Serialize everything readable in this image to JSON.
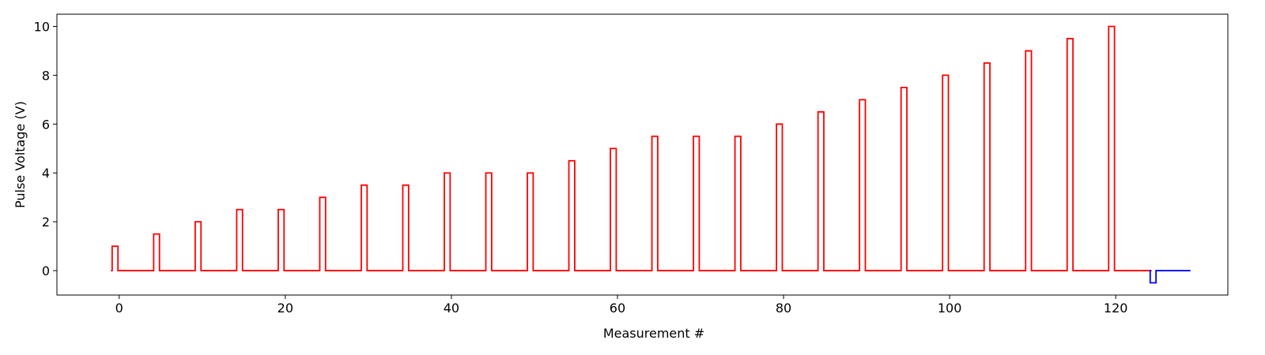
{
  "chart_data": {
    "type": "line",
    "xlabel": "Measurement #",
    "ylabel": "Pulse Voltage (V)",
    "xlim": [
      -7.5,
      133.5
    ],
    "ylim": [
      -1.0,
      10.5
    ],
    "xticks": [
      0,
      20,
      40,
      60,
      80,
      100,
      120
    ],
    "yticks": [
      0,
      2,
      4,
      6,
      8,
      10
    ],
    "grid": false,
    "legend": "none",
    "pulse_width": 0.7,
    "series": [
      {
        "color": "#ff0000",
        "step_plot": true,
        "baseline": 0,
        "x_start": -1,
        "x_end": 124.3,
        "pulses": [
          {
            "x": -0.5,
            "v": 1.0
          },
          {
            "x": 4.5,
            "v": 1.5
          },
          {
            "x": 9.5,
            "v": 2.0
          },
          {
            "x": 14.5,
            "v": 2.5
          },
          {
            "x": 19.5,
            "v": 2.5
          },
          {
            "x": 24.5,
            "v": 3.0
          },
          {
            "x": 29.5,
            "v": 3.5
          },
          {
            "x": 34.5,
            "v": 3.5
          },
          {
            "x": 39.5,
            "v": 4.0
          },
          {
            "x": 44.5,
            "v": 4.0
          },
          {
            "x": 49.5,
            "v": 4.0
          },
          {
            "x": 54.5,
            "v": 4.5
          },
          {
            "x": 59.5,
            "v": 5.0
          },
          {
            "x": 64.5,
            "v": 5.5
          },
          {
            "x": 69.5,
            "v": 5.5
          },
          {
            "x": 74.5,
            "v": 5.5
          },
          {
            "x": 79.5,
            "v": 6.0
          },
          {
            "x": 84.5,
            "v": 6.5
          },
          {
            "x": 89.5,
            "v": 7.0
          },
          {
            "x": 94.5,
            "v": 7.5
          },
          {
            "x": 99.5,
            "v": 8.0
          },
          {
            "x": 104.5,
            "v": 8.5
          },
          {
            "x": 109.5,
            "v": 9.0
          },
          {
            "x": 114.5,
            "v": 9.5
          },
          {
            "x": 119.5,
            "v": 10.0
          }
        ]
      },
      {
        "color": "#0000ff",
        "step_plot": true,
        "baseline": 0,
        "x_start": 124.3,
        "x_end": 129,
        "pulses": [
          {
            "x": 124.5,
            "v": -0.5
          }
        ]
      }
    ]
  }
}
